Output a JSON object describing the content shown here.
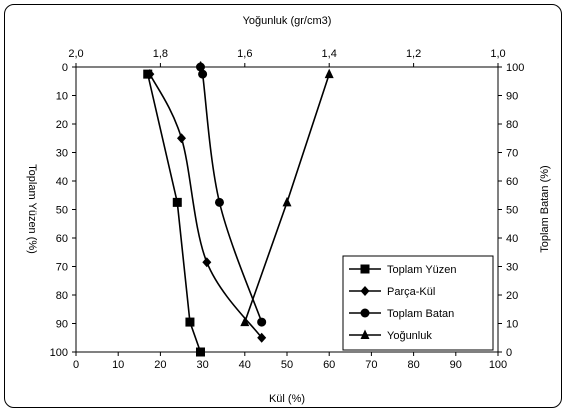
{
  "chart_data": {
    "type": "scatter",
    "x_bottom": {
      "label": "Kül (%)",
      "range": [
        0,
        100
      ],
      "ticks": [
        0,
        10,
        20,
        30,
        40,
        50,
        60,
        70,
        80,
        90,
        100
      ]
    },
    "x_top": {
      "label": "Yoğunluk (gr/cm3)",
      "range": [
        2.0,
        1.0
      ],
      "ticks": [
        "2,0",
        "1,8",
        "1,6",
        "1,4",
        "1,2",
        "1,0"
      ],
      "tick_values": [
        2.0,
        1.8,
        1.6,
        1.4,
        1.2,
        1.0
      ]
    },
    "y_left": {
      "label": "Toplam Yüzen (%)",
      "range": [
        0,
        100
      ],
      "inverted": true,
      "ticks": [
        0,
        10,
        20,
        30,
        40,
        50,
        60,
        70,
        80,
        90,
        100
      ]
    },
    "y_right": {
      "label": "Toplam Batan (%)",
      "range": [
        0,
        100
      ],
      "ticks": [
        0,
        10,
        20,
        30,
        40,
        50,
        60,
        70,
        80,
        90,
        100
      ]
    },
    "grid": false,
    "legend_position": "bottom-right",
    "series": [
      {
        "name": "Toplam Yüzen",
        "marker": "square",
        "smooth": false,
        "axis_y": "left",
        "points": [
          [
            17,
            2.5
          ],
          [
            24,
            47.5
          ],
          [
            27,
            89.5
          ],
          [
            29.5,
            100
          ]
        ]
      },
      {
        "name": "Parça-Kül",
        "marker": "diamond",
        "smooth": true,
        "axis_y": "left",
        "points": [
          [
            17.5,
            2.5
          ],
          [
            25,
            25
          ],
          [
            31,
            68.5
          ],
          [
            44,
            95
          ]
        ]
      },
      {
        "name": "Toplam Batan",
        "marker": "circle",
        "smooth": true,
        "axis_y": "right",
        "points": [
          [
            29.5,
            100
          ],
          [
            30,
            97.5
          ],
          [
            34,
            52.5
          ],
          [
            44,
            10.5
          ]
        ]
      },
      {
        "name": "Yoğunluk",
        "marker": "triangle",
        "smooth": false,
        "axis_y": "left",
        "points": [
          [
            60,
            2.5
          ],
          [
            50,
            47.5
          ],
          [
            40,
            89.5
          ]
        ]
      }
    ]
  }
}
